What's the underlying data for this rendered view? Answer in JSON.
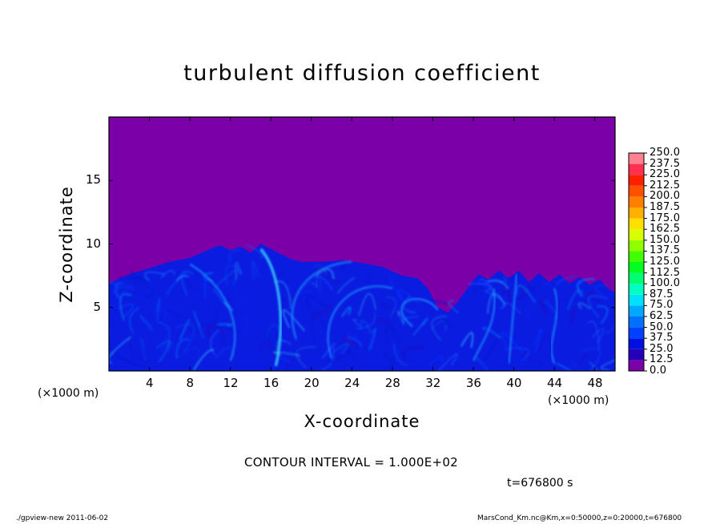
{
  "chart_data": {
    "type": "heatmap",
    "title": "turbulent diffusion coefficient",
    "xlabel": "X-coordinate",
    "ylabel": "Z-coordinate",
    "x_unit_left": "(×1000 m)",
    "x_unit_right": "(×1000 m)",
    "xlim": [
      0,
      50
    ],
    "ylim": [
      0,
      20
    ],
    "x_ticks": [
      "4",
      "8",
      "12",
      "16",
      "20",
      "24",
      "28",
      "32",
      "36",
      "40",
      "44",
      "48"
    ],
    "y_ticks": [
      "5",
      "10",
      "15"
    ],
    "colorbar": {
      "levels": [
        "0.0",
        "12.5",
        "25.0",
        "37.5",
        "50.0",
        "62.5",
        "75.0",
        "87.5",
        "100.0",
        "112.5",
        "125.0",
        "137.5",
        "150.0",
        "162.5",
        "175.0",
        "187.5",
        "200.0",
        "212.5",
        "225.0",
        "237.5",
        "250.0"
      ],
      "colors": [
        "#7a00a8",
        "#2400b8",
        "#0010e0",
        "#0040ff",
        "#0070ff",
        "#00a8ff",
        "#00e0ff",
        "#00ffc0",
        "#00ff70",
        "#00ff20",
        "#40ff00",
        "#90ff00",
        "#d8ff00",
        "#ffe000",
        "#ffb000",
        "#ff8000",
        "#ff5000",
        "#ff2000",
        "#ff3050",
        "#ff8090"
      ]
    },
    "background_color": "#7b00a8",
    "turbulent_layer_top": [
      [
        0,
        6.9
      ],
      [
        2,
        7.6
      ],
      [
        4,
        8.1
      ],
      [
        6,
        8.6
      ],
      [
        8,
        8.9
      ],
      [
        10,
        9.6
      ],
      [
        11,
        9.9
      ],
      [
        12,
        9.5
      ],
      [
        13,
        9.8
      ],
      [
        14,
        9.3
      ],
      [
        15,
        10.0
      ],
      [
        16,
        9.6
      ],
      [
        17,
        9.2
      ],
      [
        18,
        8.8
      ],
      [
        19,
        8.6
      ],
      [
        21,
        8.6
      ],
      [
        23,
        8.7
      ],
      [
        25,
        8.5
      ],
      [
        27,
        8.2
      ],
      [
        29,
        7.5
      ],
      [
        30.5,
        7.3
      ],
      [
        31.5,
        6.5
      ],
      [
        32.5,
        5.0
      ],
      [
        33.5,
        4.6
      ],
      [
        34.5,
        5.5
      ],
      [
        35.5,
        6.6
      ],
      [
        36.5,
        7.6
      ],
      [
        37.5,
        7.2
      ],
      [
        38.5,
        7.9
      ],
      [
        39.5,
        7.3
      ],
      [
        40.5,
        7.9
      ],
      [
        41.5,
        7.0
      ],
      [
        42.5,
        7.7
      ],
      [
        43.5,
        7.0
      ],
      [
        44.5,
        7.6
      ],
      [
        45.5,
        6.9
      ],
      [
        46.5,
        7.4
      ],
      [
        47.5,
        6.8
      ],
      [
        48.5,
        7.2
      ],
      [
        49.3,
        6.5
      ],
      [
        50,
        6.2
      ]
    ]
  },
  "contour_interval": "CONTOUR INTERVAL = 1.000E+02",
  "time_label": "t=676800 s",
  "footer_left": "./gpview-new   2011-06-02",
  "footer_right": "MarsCond_Km.nc@Km,x=0:50000,z=0:20000,t=676800"
}
